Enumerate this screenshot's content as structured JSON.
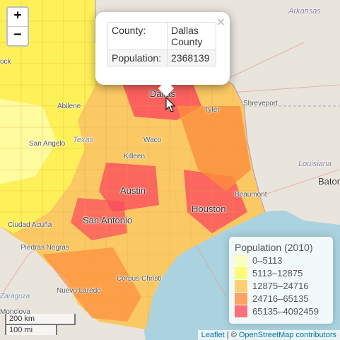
{
  "map": {
    "zoom_in_label": "+",
    "zoom_out_label": "−"
  },
  "popup": {
    "close_label": "×",
    "county_key": "County:",
    "county_value": "Dallas County",
    "population_key": "Population:",
    "population_value": "2368139"
  },
  "legend": {
    "title": "Population (2010)",
    "items": [
      {
        "label": "0–5113",
        "color": "#ffffb2"
      },
      {
        "label": "5113–12875",
        "color": "#fffc56"
      },
      {
        "label": "12875–24716",
        "color": "#fec44f"
      },
      {
        "label": "24716–65135",
        "color": "#fd8d3c"
      },
      {
        "label": "65135–4092459",
        "color": "#fb4e5e"
      }
    ]
  },
  "labels": {
    "arkansas": "Arkansas",
    "ock": "ock",
    "abilene": "Abilene",
    "dallas": "Dallas",
    "tyler": "Tyler",
    "shreveport": "Shreveport",
    "san_angelo": "San Angelo",
    "texas": "Texas",
    "waco": "Waco",
    "killeen": "Killeen",
    "louisiana": "Louisiana",
    "baton": "Baton",
    "austin": "Austin",
    "beaumont": "Beaumont",
    "houston": "Houston",
    "ciudad_acuna": "Ciudad Acuña",
    "san_antonio": "San Antonio",
    "piedras_negras": "Piedras Negras",
    "corpus_christi": "Corpus Christi",
    "zaragoza": "Zaragoza",
    "nuevo_laredo": "Nuevo Laredo",
    "monclova": "Monclova"
  },
  "scale": {
    "km": "200 km",
    "mi": "100 mi"
  },
  "attribution": {
    "leaflet": "Leaflet",
    "separator": " | © ",
    "osm": "OpenStreetMap contributors"
  },
  "colors": {
    "water": "#aad3df",
    "land": "#e9e5dc",
    "county_border": "#e6a23c"
  }
}
